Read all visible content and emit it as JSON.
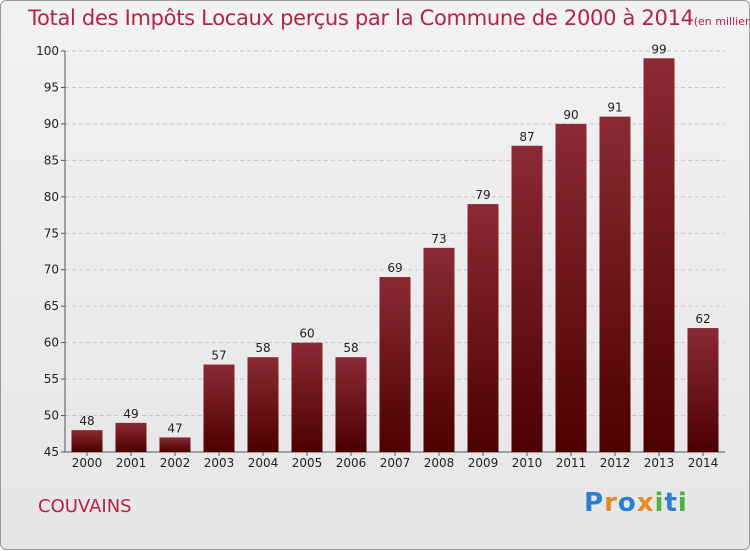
{
  "chart_data": {
    "type": "bar",
    "title": "Total des Impôts Locaux perçus par la Commune de 2000 à 2014",
    "unit": "(en milliers d'€)",
    "categories": [
      "2000",
      "2001",
      "2002",
      "2003",
      "2004",
      "2005",
      "2006",
      "2007",
      "2008",
      "2009",
      "2010",
      "2011",
      "2012",
      "2013",
      "2014"
    ],
    "values": [
      48,
      49,
      47,
      57,
      58,
      60,
      58,
      69,
      73,
      79,
      87,
      90,
      91,
      99,
      62
    ],
    "ylim": [
      45,
      100
    ],
    "yticks": [
      45,
      50,
      55,
      60,
      65,
      70,
      75,
      80,
      85,
      90,
      95,
      100
    ],
    "xlabel": "",
    "ylabel": "",
    "grid": "horizontal",
    "bar_color": "#7a1a24"
  },
  "commune": "COUVAINS",
  "logo": {
    "letters": [
      "P",
      "r",
      "o",
      "x",
      "i",
      "t",
      "i"
    ],
    "colors": [
      "#2a7fd0",
      "#e8892a",
      "#2a7fd0",
      "#e8892a",
      "#52b043",
      "#2a7fd0",
      "#52b043"
    ]
  }
}
